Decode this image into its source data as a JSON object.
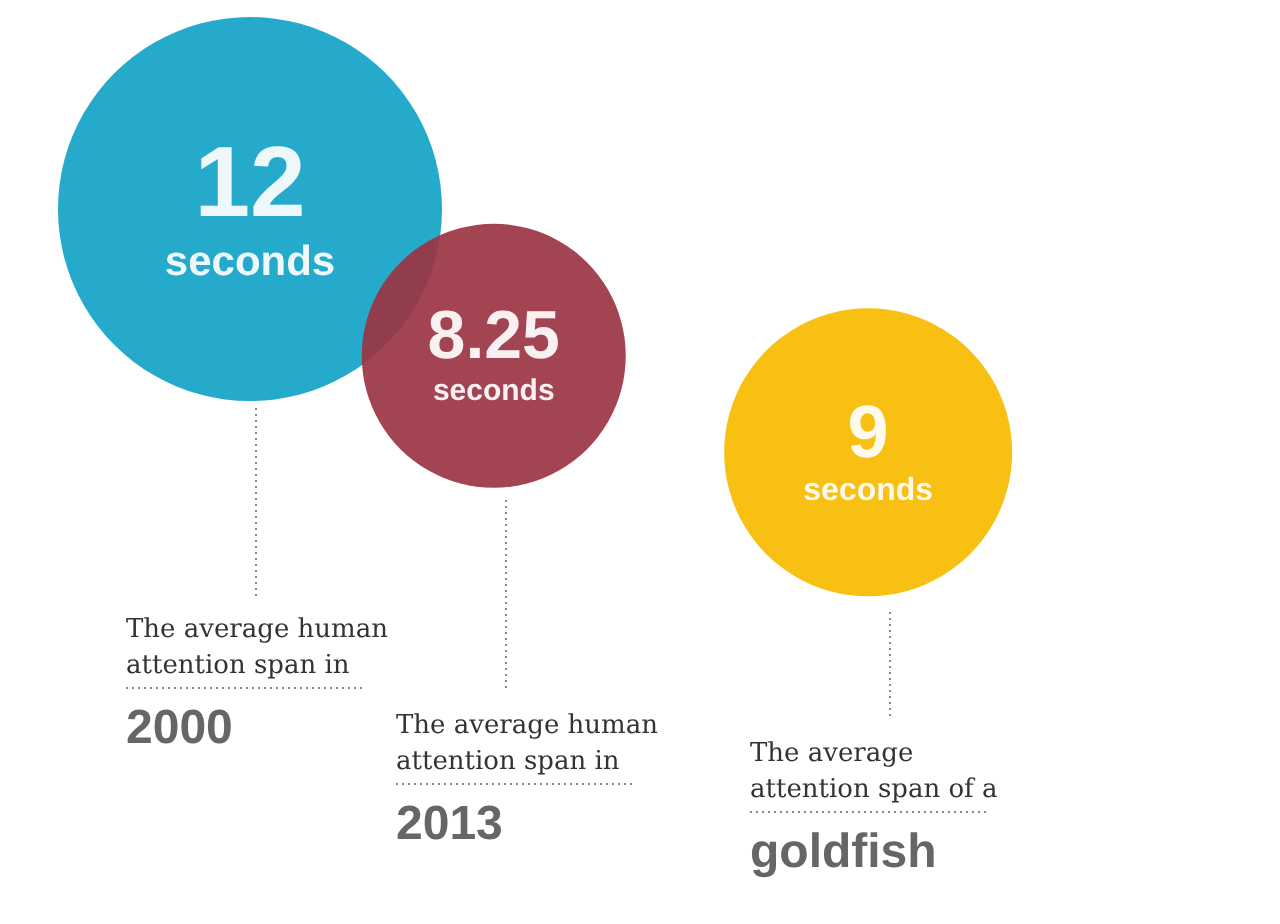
{
  "chart_data": {
    "type": "other",
    "categories": [
      "2000",
      "2013",
      "goldfish"
    ],
    "values": [
      12,
      8.25,
      9
    ],
    "colors": [
      "#12a3c7",
      "#9b3443",
      "#f9bb00"
    ],
    "value_labels": [
      "12\nseconds",
      "8.25\nseconds",
      "9\nseconds"
    ],
    "annotations": [
      "The average human attention span in",
      "The average human attention span in",
      "The average attention span of a"
    ]
  }
}
